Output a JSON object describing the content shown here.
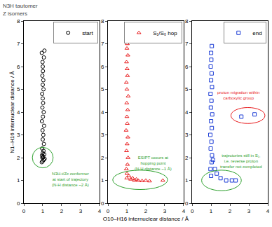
{
  "chart_data": {
    "type": "scatter",
    "title": [
      "N3H tautomer",
      "Z isomers"
    ],
    "x_label": "O10–H16 internuclear distance / Å",
    "y_label": "N1–H16 internuclear distance / Å",
    "xlim": [
      0,
      4
    ],
    "xticks": [
      0,
      1,
      2,
      3,
      4
    ],
    "ylim": [
      0,
      8
    ],
    "yticks": [
      0,
      1,
      2,
      3,
      4,
      5,
      6,
      7,
      8
    ],
    "grid": false,
    "legend": "top right",
    "series": [
      {
        "name": "start",
        "color": "#000000",
        "marker": "circle-open",
        "x": [
          0.95,
          1.0,
          1.05,
          1.1,
          0.98,
          1.02,
          0.96,
          1.08,
          1.0,
          1.04,
          0.97,
          1.06,
          1.0,
          1.03,
          0.99,
          1.07,
          0.96,
          1.01,
          1.05,
          0.98,
          1.02,
          1.0,
          0.97,
          1.04,
          1.0,
          1.03,
          0.98,
          1.01,
          1.0,
          0.99,
          1.06,
          0.95,
          1.09,
          1.0
        ],
        "y": [
          1.8,
          1.85,
          1.9,
          1.95,
          2.0,
          2.05,
          2.1,
          2.15,
          2.2,
          2.3,
          2.4,
          2.6,
          2.8,
          3.0,
          3.2,
          3.4,
          3.6,
          3.8,
          4.0,
          4.2,
          4.4,
          4.6,
          4.8,
          5.0,
          5.2,
          5.4,
          5.6,
          5.8,
          6.0,
          6.2,
          6.4,
          6.6,
          6.7,
          2.0
        ],
        "annotations": [
          {
            "lines": [
              "N3H-t/Zc conformer",
              "at start of trajectory",
              "(N-H distance ~2 Å)"
            ],
            "color": "#2ca02c"
          }
        ]
      },
      {
        "name": "S₁/S₀ hop",
        "color": "#e8191b",
        "marker": "triangle-up-open",
        "x": [
          1.0,
          0.97,
          1.03,
          1.06,
          0.98,
          1.01,
          1.05,
          0.96,
          1.02,
          1.0,
          1.04,
          0.99,
          1.07,
          1.0,
          0.97,
          1.03,
          1.01,
          0.98,
          1.05,
          1.0,
          1.02,
          0.99,
          1.1,
          1.2,
          1.3,
          1.4,
          1.5,
          1.6,
          1.8,
          2.0,
          2.2,
          2.9
        ],
        "y": [
          1.3,
          1.5,
          1.7,
          2.0,
          2.3,
          2.6,
          2.9,
          3.2,
          3.5,
          3.8,
          4.1,
          4.4,
          4.7,
          5.0,
          5.3,
          5.6,
          5.9,
          6.2,
          6.5,
          6.8,
          7.0,
          1.1,
          1.2,
          1.05,
          1.1,
          1.0,
          1.05,
          1.0,
          0.98,
          1.0,
          0.97,
          1.0
        ],
        "annotations": [
          {
            "lines": [
              "ESIPT occurs at",
              "hopping point",
              "(N-H distance ~1 Å)"
            ],
            "color": "#2ca02c"
          }
        ]
      },
      {
        "name": "end",
        "color": "#1f3fd6",
        "marker": "square-open",
        "x": [
          1.0,
          0.97,
          1.03,
          1.05,
          0.98,
          1.02,
          0.96,
          1.04,
          1.0,
          1.06,
          0.99,
          1.02,
          0.97,
          1.05,
          1.0,
          1.03,
          0.98,
          1.01,
          1.0,
          1.04,
          1.1,
          1.2,
          1.3,
          1.5,
          1.8,
          2.1,
          2.3,
          2.6,
          3.3
        ],
        "y": [
          1.2,
          1.5,
          1.8,
          2.1,
          2.4,
          2.7,
          3.0,
          3.3,
          3.6,
          3.9,
          4.2,
          4.5,
          4.8,
          5.1,
          5.4,
          5.7,
          6.0,
          6.3,
          6.6,
          6.9,
          1.9,
          1.5,
          1.3,
          1.1,
          1.0,
          1.0,
          1.0,
          3.8,
          3.9
        ],
        "annotations": [
          {
            "lines": [
              "proton migration within",
              "carboxylic group"
            ],
            "color": "#e8191b"
          },
          {
            "lines": [
              "trajectories still in S₁,",
              "i.e. reverse proton",
              "transfer not completed"
            ],
            "color": "#2ca02c"
          }
        ]
      }
    ]
  }
}
